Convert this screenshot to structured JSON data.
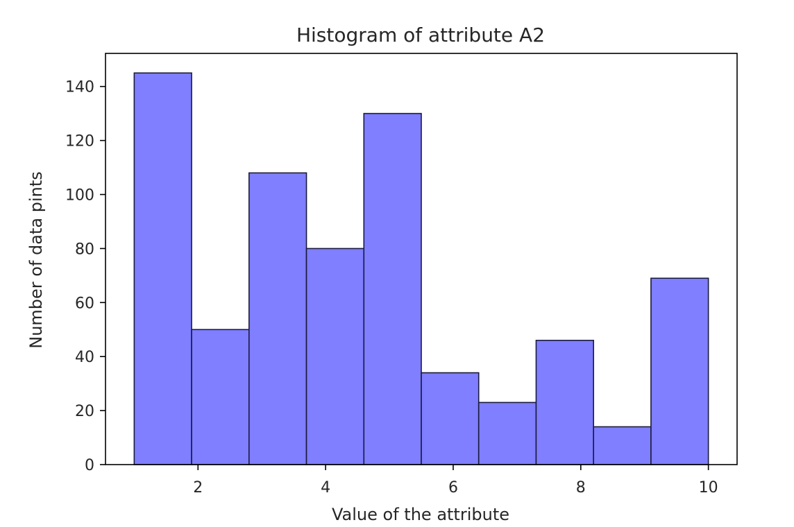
{
  "chart_data": {
    "type": "bar",
    "title": "Histogram of attribute A2",
    "xlabel": "Value of the attribute",
    "ylabel": "Number of data pints",
    "xlim": [
      0.55,
      10.45
    ],
    "ylim": [
      0,
      152.25
    ],
    "bins": [
      {
        "x0": 1.0,
        "x1": 1.9,
        "value": 145
      },
      {
        "x0": 1.9,
        "x1": 2.8,
        "value": 50
      },
      {
        "x0": 2.8,
        "x1": 3.7,
        "value": 108
      },
      {
        "x0": 3.7,
        "x1": 4.6,
        "value": 80
      },
      {
        "x0": 4.6,
        "x1": 5.5,
        "value": 130
      },
      {
        "x0": 5.5,
        "x1": 6.4,
        "value": 34
      },
      {
        "x0": 6.4,
        "x1": 7.3,
        "value": 23
      },
      {
        "x0": 7.3,
        "x1": 8.2,
        "value": 46
      },
      {
        "x0": 8.2,
        "x1": 9.1,
        "value": 14
      },
      {
        "x0": 9.1,
        "x1": 10.0,
        "value": 69
      }
    ],
    "xticks": [
      2,
      4,
      6,
      8,
      10
    ],
    "yticks": [
      0,
      20,
      40,
      60,
      80,
      100,
      120,
      140
    ],
    "bar_color": "#7f7fff",
    "edge_color": "#1a1a40",
    "grid": false,
    "legend": "none"
  }
}
